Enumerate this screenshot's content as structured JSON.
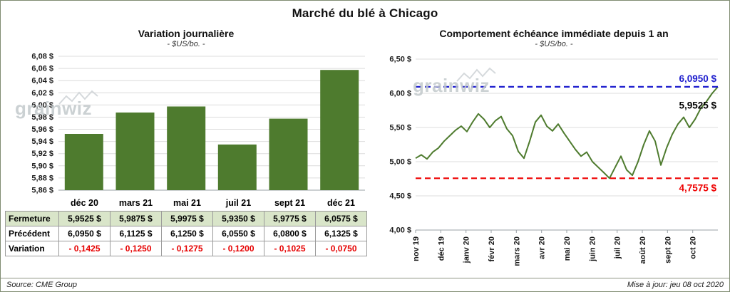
{
  "header": {
    "title": "Marché du blé à Chicago"
  },
  "footer": {
    "source": "Source: CME Group",
    "updated": "Mise à jour: jeu 08 oct 2020"
  },
  "watermark": "grainwiz",
  "left_panel": {
    "title": "Variation journalière",
    "subtitle": "- $US/bo. -"
  },
  "right_panel": {
    "title": "Comportement échéance immédiate depuis 1 an",
    "subtitle": "- $US/bo. -"
  },
  "table": {
    "categories": [
      "déc 20",
      "mars 21",
      "mai 21",
      "juil 21",
      "sept 21",
      "déc 21"
    ],
    "rows": [
      {
        "key": "fermeture",
        "label": "Fermeture",
        "values": [
          "5,9525  $",
          "5,9875  $",
          "5,9975  $",
          "5,9350  $",
          "5,9775  $",
          "6,0575  $"
        ]
      },
      {
        "key": "precedent",
        "label": "Précédent",
        "values": [
          "6,0950  $",
          "6,1125  $",
          "6,1250  $",
          "6,0550  $",
          "6,0800  $",
          "6,1325  $"
        ]
      },
      {
        "key": "variation",
        "label": "Variation",
        "values": [
          "- 0,1425",
          "- 0,1250",
          "- 0,1275",
          "- 0,1200",
          "- 0,1025",
          "- 0,0750"
        ]
      }
    ]
  },
  "chart_data": [
    {
      "type": "bar",
      "title": "Variation journalière",
      "subtitle": "- $US/bo. -",
      "categories": [
        "déc 20",
        "mars 21",
        "mai 21",
        "juil 21",
        "sept 21",
        "déc 21"
      ],
      "values": [
        5.9525,
        5.9875,
        5.9975,
        5.935,
        5.9775,
        6.0575
      ],
      "ylim": [
        5.86,
        6.08
      ],
      "ytick_step": 0.02,
      "ytick_labels": [
        "5,86 $",
        "5,88 $",
        "5,90 $",
        "5,92 $",
        "5,94 $",
        "5,96 $",
        "5,98 $",
        "6,00 $",
        "6,02 $",
        "6,04 $",
        "6,06 $",
        "6,08 $"
      ],
      "bar_color": "#4e7b2e",
      "grid": true,
      "legend": "none"
    },
    {
      "type": "line",
      "title": "Comportement échéance immédiate depuis 1 an",
      "subtitle": "- $US/bo. -",
      "x_labels": [
        "nov 19",
        "déc 19",
        "janv 20",
        "févr 20",
        "mars 20",
        "avr 20",
        "mai 20",
        "juin 20",
        "juil 20",
        "août 20",
        "sept 20",
        "oct 20"
      ],
      "values": [
        5.05,
        5.1,
        5.04,
        5.14,
        5.2,
        5.3,
        5.38,
        5.46,
        5.52,
        5.44,
        5.58,
        5.7,
        5.62,
        5.5,
        5.6,
        5.66,
        5.48,
        5.38,
        5.15,
        5.05,
        5.3,
        5.58,
        5.68,
        5.52,
        5.45,
        5.55,
        5.42,
        5.3,
        5.18,
        5.08,
        5.14,
        5.0,
        4.92,
        4.84,
        4.7575,
        4.92,
        5.08,
        4.88,
        4.8,
        5.0,
        5.25,
        5.45,
        5.3,
        4.95,
        5.2,
        5.4,
        5.55,
        5.65,
        5.5,
        5.62,
        5.78,
        5.88,
        6.0,
        6.095
      ],
      "ylim": [
        4.0,
        6.5
      ],
      "ytick_step": 0.5,
      "ytick_labels": [
        "4,00 $",
        "4,50 $",
        "5,00 $",
        "5,50 $",
        "6,00 $",
        "6,50 $"
      ],
      "line_color": "#4e7b2e",
      "grid": true,
      "legend": "none",
      "annotations": [
        {
          "type": "hline",
          "value": 6.095,
          "color": "#1c1ccd",
          "dash": true,
          "label": "6,0950 $",
          "label_pos": "above-right"
        },
        {
          "type": "label",
          "value": 5.9525,
          "color": "#000000",
          "dash": false,
          "label": "5,9525 $",
          "label_pos": "right"
        },
        {
          "type": "hline",
          "value": 4.7575,
          "color": "#ee0000",
          "dash": true,
          "label": "4,7575 $",
          "label_pos": "below-right"
        }
      ]
    }
  ]
}
